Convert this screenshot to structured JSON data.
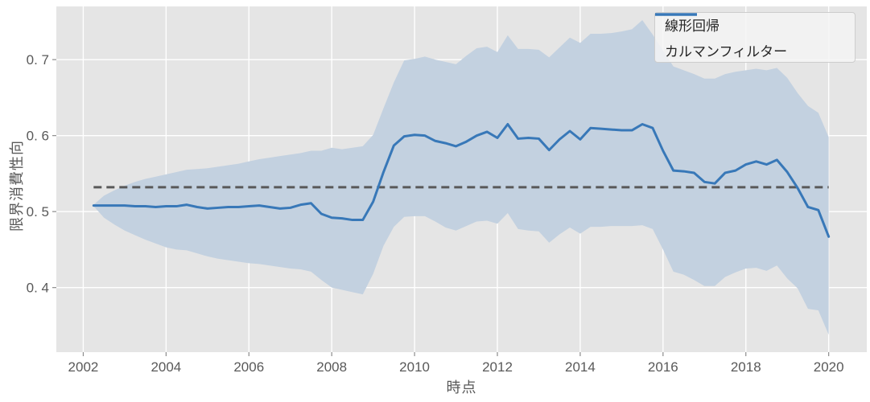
{
  "chart_data": {
    "type": "line",
    "xlabel": "時点",
    "ylabel": "限界消費性向",
    "xlim": [
      2001.35,
      2020.92
    ],
    "ylim": [
      0.315,
      0.77
    ],
    "grid": true,
    "plot_bg": "#e5e5e5",
    "grid_color": "#ffffff",
    "xticks": [
      2002,
      2004,
      2006,
      2008,
      2010,
      2012,
      2014,
      2016,
      2018,
      2020
    ],
    "xtick_labels": [
      "2002",
      "2004",
      "2006",
      "2008",
      "2010",
      "2012",
      "2014",
      "2016",
      "2018",
      "2020"
    ],
    "yticks": [
      0.4,
      0.5,
      0.6,
      0.7
    ],
    "ytick_labels": [
      "0. 4",
      "0. 5",
      "0. 6",
      "0. 7"
    ],
    "legend": {
      "position": "upper right",
      "entries": [
        {
          "label": "線形回帰",
          "style": "dashed",
          "color": "#595959"
        },
        {
          "label": "カルマンフィルター",
          "style": "solid",
          "color": "#3878b8"
        }
      ]
    },
    "x": [
      2002.25,
      2002.5,
      2002.75,
      2003.0,
      2003.25,
      2003.5,
      2003.75,
      2004.0,
      2004.25,
      2004.5,
      2004.75,
      2005.0,
      2005.25,
      2005.5,
      2005.75,
      2006.0,
      2006.25,
      2006.5,
      2006.75,
      2007.0,
      2007.25,
      2007.5,
      2007.75,
      2008.0,
      2008.25,
      2008.5,
      2008.75,
      2009.0,
      2009.25,
      2009.5,
      2009.75,
      2010.0,
      2010.25,
      2010.5,
      2010.75,
      2011.0,
      2011.25,
      2011.5,
      2011.75,
      2012.0,
      2012.25,
      2012.5,
      2012.75,
      2013.0,
      2013.25,
      2013.5,
      2013.75,
      2014.0,
      2014.25,
      2014.5,
      2014.75,
      2015.0,
      2015.25,
      2015.5,
      2015.75,
      2016.0,
      2016.25,
      2016.5,
      2016.75,
      2017.0,
      2017.25,
      2017.5,
      2017.75,
      2018.0,
      2018.25,
      2018.5,
      2018.75,
      2019.0,
      2019.25,
      2019.5,
      2019.75,
      2020.0
    ],
    "series": [
      {
        "name": "線形回帰",
        "type": "constant",
        "value": 0.532,
        "color": "#595959",
        "dash": [
          10,
          6
        ]
      },
      {
        "name": "カルマンフィルター",
        "type": "line",
        "color": "#3878b8",
        "values": [
          0.508,
          0.508,
          0.508,
          0.508,
          0.507,
          0.507,
          0.506,
          0.507,
          0.507,
          0.509,
          0.506,
          0.504,
          0.505,
          0.506,
          0.506,
          0.507,
          0.508,
          0.506,
          0.504,
          0.505,
          0.509,
          0.511,
          0.497,
          0.492,
          0.491,
          0.489,
          0.489,
          0.513,
          0.552,
          0.587,
          0.599,
          0.601,
          0.6,
          0.593,
          0.59,
          0.586,
          0.592,
          0.6,
          0.605,
          0.597,
          0.615,
          0.596,
          0.597,
          0.596,
          0.581,
          0.595,
          0.606,
          0.595,
          0.61,
          0.609,
          0.608,
          0.607,
          0.607,
          0.615,
          0.61,
          0.58,
          0.554,
          0.553,
          0.551,
          0.539,
          0.537,
          0.551,
          0.554,
          0.562,
          0.566,
          0.562,
          0.568,
          0.552,
          0.531,
          0.506,
          0.502,
          0.467
        ]
      },
      {
        "name": "confidence-band",
        "type": "band",
        "color": "#c3d1e0",
        "upper": [
          0.509,
          0.521,
          0.528,
          0.534,
          0.539,
          0.543,
          0.546,
          0.549,
          0.552,
          0.555,
          0.556,
          0.557,
          0.559,
          0.561,
          0.563,
          0.566,
          0.569,
          0.571,
          0.573,
          0.575,
          0.577,
          0.58,
          0.58,
          0.584,
          0.582,
          0.584,
          0.586,
          0.601,
          0.636,
          0.67,
          0.699,
          0.701,
          0.704,
          0.7,
          0.697,
          0.694,
          0.705,
          0.715,
          0.717,
          0.71,
          0.732,
          0.714,
          0.714,
          0.713,
          0.703,
          0.716,
          0.729,
          0.722,
          0.734,
          0.734,
          0.735,
          0.737,
          0.74,
          0.752,
          0.733,
          0.712,
          0.691,
          0.686,
          0.681,
          0.675,
          0.675,
          0.681,
          0.684,
          0.686,
          0.688,
          0.686,
          0.689,
          0.676,
          0.656,
          0.639,
          0.63,
          0.598
        ],
        "lower": [
          0.507,
          0.492,
          0.483,
          0.475,
          0.469,
          0.463,
          0.458,
          0.453,
          0.45,
          0.449,
          0.445,
          0.441,
          0.438,
          0.436,
          0.434,
          0.432,
          0.431,
          0.429,
          0.427,
          0.425,
          0.424,
          0.421,
          0.41,
          0.4,
          0.397,
          0.394,
          0.391,
          0.418,
          0.455,
          0.48,
          0.493,
          0.494,
          0.494,
          0.487,
          0.479,
          0.475,
          0.481,
          0.487,
          0.488,
          0.484,
          0.498,
          0.477,
          0.475,
          0.474,
          0.459,
          0.47,
          0.479,
          0.471,
          0.48,
          0.48,
          0.481,
          0.481,
          0.481,
          0.482,
          0.477,
          0.45,
          0.421,
          0.417,
          0.41,
          0.402,
          0.402,
          0.414,
          0.42,
          0.425,
          0.426,
          0.422,
          0.429,
          0.412,
          0.399,
          0.372,
          0.37,
          0.338
        ]
      }
    ]
  }
}
